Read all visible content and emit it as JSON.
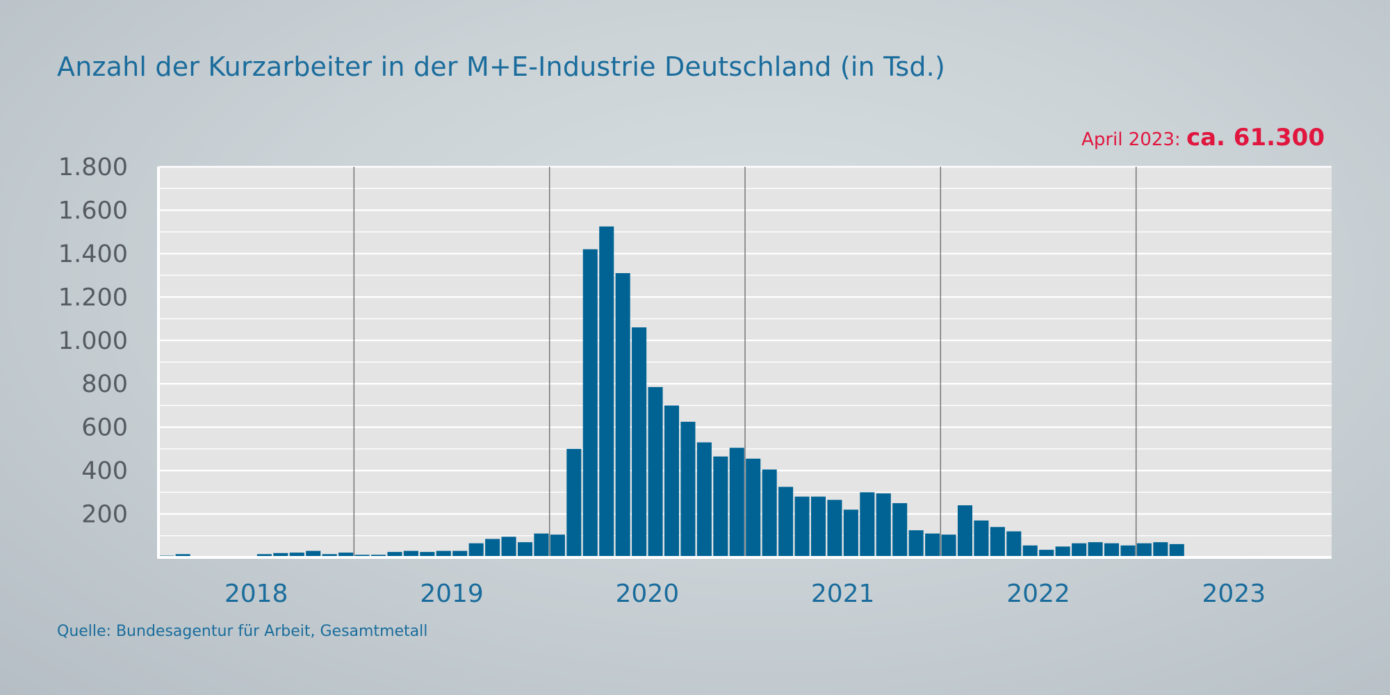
{
  "title": "Anzahl der Kurzarbeiter in der M+E-Industrie Deutschland (in Tsd.)",
  "callout": {
    "label": "April 2023:",
    "value": "ca. 61.300"
  },
  "source": "Quelle: Bundesagentur für Arbeit, Gesamtmetall",
  "colors": {
    "bar": "#006394",
    "title": "#1a6c9c",
    "callout": "#e0163e",
    "plot_bg": "#e4e4e4",
    "grid": "#ffffff",
    "year_line": "#6e6e6e"
  },
  "chart_data": {
    "type": "bar",
    "title": "Anzahl der Kurzarbeiter in der M+E-Industrie Deutschland (in Tsd.)",
    "xlabel": "",
    "ylabel": "",
    "unit": "Tsd.",
    "ylim": [
      0,
      1800
    ],
    "yticks": [
      200,
      400,
      600,
      800,
      1000,
      1200,
      1400,
      1600,
      1800
    ],
    "ytick_labels": [
      "200",
      "400",
      "600",
      "800",
      "1.000",
      "1.200",
      "1.400",
      "1.600",
      "1.800"
    ],
    "year_labels": [
      "2018",
      "2019",
      "2020",
      "2021",
      "2022",
      "2023"
    ],
    "grid": true,
    "monthly_grid_minor": true,
    "x_start": "2018-01",
    "categories": [
      "2018-01",
      "2018-02",
      "2018-03",
      "2018-04",
      "2018-05",
      "2018-06",
      "2018-07",
      "2018-08",
      "2018-09",
      "2018-10",
      "2018-11",
      "2018-12",
      "2019-01",
      "2019-02",
      "2019-03",
      "2019-04",
      "2019-05",
      "2019-06",
      "2019-07",
      "2019-08",
      "2019-09",
      "2019-10",
      "2019-11",
      "2019-12",
      "2020-01",
      "2020-02",
      "2020-03",
      "2020-04",
      "2020-05",
      "2020-06",
      "2020-07",
      "2020-08",
      "2020-09",
      "2020-10",
      "2020-11",
      "2020-12",
      "2021-01",
      "2021-02",
      "2021-03",
      "2021-04",
      "2021-05",
      "2021-06",
      "2021-07",
      "2021-08",
      "2021-09",
      "2021-10",
      "2021-11",
      "2021-12",
      "2022-01",
      "2022-02",
      "2022-03",
      "2022-04",
      "2022-05",
      "2022-06",
      "2022-07",
      "2022-08",
      "2022-09",
      "2022-10",
      "2022-11",
      "2022-12",
      "2023-01",
      "2023-02",
      "2023-03",
      "2023-04",
      "2023-05",
      "2023-06",
      "2023-07",
      "2023-08",
      "2023-09",
      "2023-10",
      "2023-11",
      "2023-12"
    ],
    "values": [
      8,
      15,
      1,
      1,
      1,
      1,
      15,
      20,
      22,
      30,
      15,
      22,
      12,
      12,
      25,
      30,
      25,
      30,
      30,
      65,
      85,
      95,
      70,
      110,
      105,
      500,
      1420,
      1525,
      1310,
      1060,
      785,
      700,
      625,
      530,
      465,
      505,
      455,
      405,
      325,
      280,
      280,
      265,
      220,
      300,
      295,
      250,
      125,
      110,
      105,
      240,
      170,
      140,
      120,
      55,
      35,
      50,
      65,
      70,
      65,
      55,
      65,
      70,
      61.3,
      0,
      0,
      0,
      0,
      0,
      0,
      0,
      0,
      0
    ]
  }
}
